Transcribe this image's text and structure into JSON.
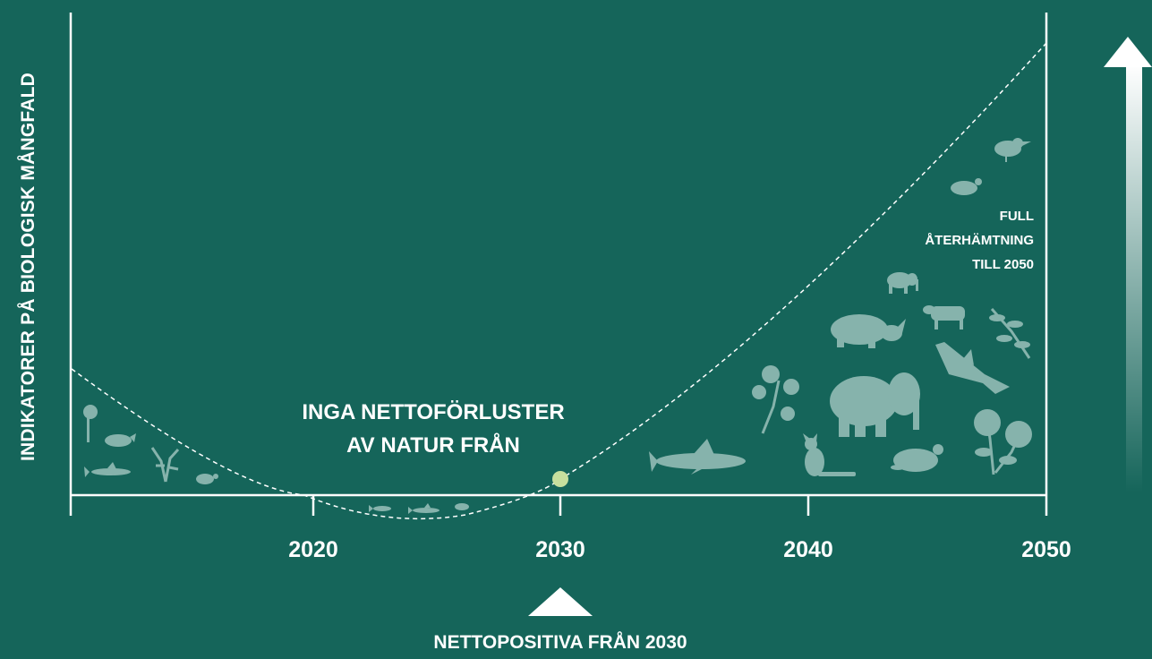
{
  "diagram": {
    "y_axis_label": "INDIKATORER PÅ BIOLOGISK MÅNGFALD",
    "x_ticks": [
      "2020",
      "2030",
      "2040",
      "2050"
    ],
    "milestone_text": [
      "INGA NETTOFÖRLUSTER",
      "AV NATUR FRÅN"
    ],
    "end_text": [
      "FULL",
      "ÅTERHÄMTNING",
      "TILL 2050"
    ],
    "bottom_text": "NETTOPOSITIVA FRÅN 2030",
    "colors": {
      "background": "#15655a",
      "axis": "#ffffff",
      "curve": "#ffffff",
      "milestone_dot": "#c7df9e",
      "silhouettes": "#86b3ac"
    },
    "icons": [
      "flower-icon",
      "rhino-icon",
      "shark-icon",
      "coral-icon",
      "turtle-icon",
      "fish-icon",
      "shark-icon",
      "turtle-icon",
      "shark-icon",
      "plant-icon",
      "elephant-icon",
      "cat-icon",
      "turtle-icon",
      "rhino-icon",
      "elephant-icon",
      "cow-icon",
      "shark-icon",
      "branch-icon",
      "daisy-icon",
      "turtle-icon",
      "bird-icon"
    ]
  }
}
